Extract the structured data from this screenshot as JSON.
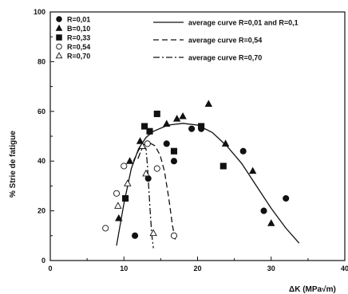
{
  "chart_data": {
    "type": "scatter",
    "xlabel": "ΔK (MPa√m)",
    "ylabel": "% Strie de fatigue",
    "xlim": [
      0,
      40
    ],
    "ylim": [
      0,
      100
    ],
    "x_ticks": [
      "0",
      "10",
      "20",
      "30",
      "40"
    ],
    "y_ticks": [
      "0",
      "20",
      "40",
      "60",
      "80",
      "100"
    ],
    "grid": false,
    "legend_position": "top-left",
    "colors": {
      "axis": "#111111",
      "marker": "#111111",
      "open_marker_fill": "#ffffff"
    },
    "series": [
      {
        "name": "R=0,01",
        "marker": "filled-circle",
        "points": [
          [
            11.5,
            10
          ],
          [
            13.3,
            33
          ],
          [
            15.8,
            47
          ],
          [
            16.8,
            40
          ],
          [
            19.2,
            53
          ],
          [
            20.5,
            53
          ],
          [
            26.2,
            44
          ],
          [
            29.0,
            20
          ],
          [
            32.0,
            25
          ]
        ]
      },
      {
        "name": "B=0,10",
        "marker": "filled-triangle",
        "points": [
          [
            9.3,
            17
          ],
          [
            10.8,
            40
          ],
          [
            12.2,
            48
          ],
          [
            15.8,
            55
          ],
          [
            17.2,
            57
          ],
          [
            18.0,
            58
          ],
          [
            21.5,
            63
          ],
          [
            23.8,
            47
          ],
          [
            27.5,
            36
          ],
          [
            30.0,
            15
          ]
        ]
      },
      {
        "name": "R=0,33",
        "marker": "filled-square",
        "points": [
          [
            10.2,
            25
          ],
          [
            12.8,
            54
          ],
          [
            13.5,
            52
          ],
          [
            14.5,
            59
          ],
          [
            16.8,
            44
          ],
          [
            20.5,
            54
          ],
          [
            23.5,
            38
          ]
        ]
      },
      {
        "name": "R=0,54",
        "marker": "open-circle",
        "points": [
          [
            7.5,
            13
          ],
          [
            9.0,
            27
          ],
          [
            10.0,
            38
          ],
          [
            13.2,
            47
          ],
          [
            14.5,
            37
          ],
          [
            16.8,
            10
          ]
        ]
      },
      {
        "name": "R=0,70",
        "marker": "open-triangle",
        "points": [
          [
            9.2,
            22
          ],
          [
            10.5,
            31
          ],
          [
            12.5,
            46
          ],
          [
            13.0,
            35
          ],
          [
            14.0,
            11
          ]
        ]
      }
    ],
    "curves": [
      {
        "name": "average curve R=0,01 and R=0,1",
        "style": "solid",
        "points": [
          [
            9.0,
            6
          ],
          [
            10.0,
            23
          ],
          [
            11.0,
            37
          ],
          [
            12.0,
            45
          ],
          [
            13.0,
            49.5
          ],
          [
            14.0,
            52
          ],
          [
            16.0,
            54.5
          ],
          [
            18.0,
            55.2
          ],
          [
            20.0,
            54.5
          ],
          [
            22.0,
            51.5
          ],
          [
            24.0,
            46
          ],
          [
            26.0,
            39
          ],
          [
            28.0,
            30
          ],
          [
            30.0,
            21
          ],
          [
            32.0,
            13
          ],
          [
            33.8,
            7
          ]
        ]
      },
      {
        "name": "average curve R=0,54",
        "style": "dashed",
        "points": [
          [
            11.3,
            40
          ],
          [
            12.0,
            44.5
          ],
          [
            12.8,
            46.8
          ],
          [
            13.5,
            47.3
          ],
          [
            14.2,
            46.2
          ],
          [
            14.9,
            42.5
          ],
          [
            15.5,
            36
          ],
          [
            16.1,
            25
          ],
          [
            16.6,
            14
          ],
          [
            17.0,
            8
          ]
        ]
      },
      {
        "name": "average curve R=0,70",
        "style": "dash-dot",
        "points": [
          [
            11.9,
            41
          ],
          [
            12.3,
            44
          ],
          [
            12.7,
            46
          ],
          [
            13.0,
            45
          ],
          [
            13.2,
            38
          ],
          [
            13.4,
            28
          ],
          [
            13.6,
            18
          ],
          [
            13.8,
            10
          ],
          [
            14.0,
            5
          ]
        ]
      }
    ]
  }
}
